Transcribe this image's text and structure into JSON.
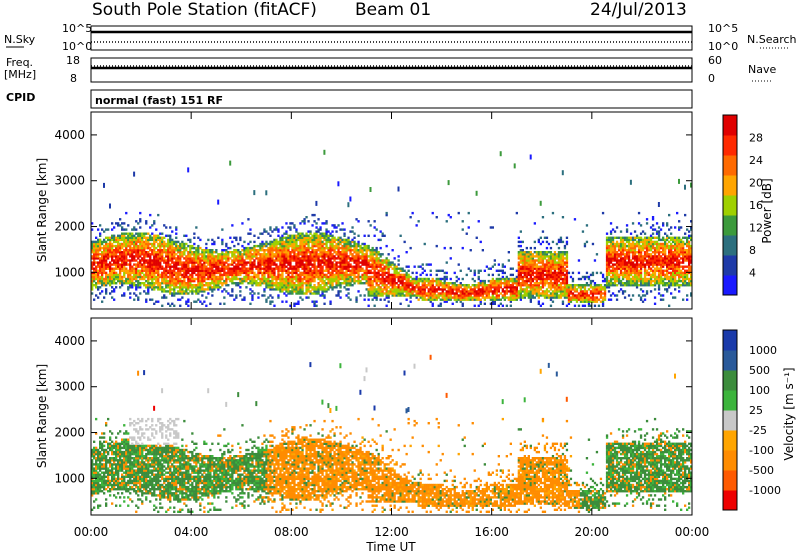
{
  "header": {
    "title": "South Pole Station (fitACF)",
    "beam": "Beam 01",
    "date": "24/Jul/2013"
  },
  "top_panels": {
    "nsky_label": "N.Sky",
    "nsearch_label": "N.Search",
    "noise_tick_top": "10^5",
    "noise_tick_bottom": "10^0",
    "freq_label": "Freq.",
    "freq_unit": "[MHz]",
    "freq_ticks": [
      "18",
      "8"
    ],
    "nave_label": "Nave",
    "nave_ticks": [
      "60",
      "0"
    ],
    "cpid_label": "CPID",
    "cpid_text": "normal (fast) 151 RF"
  },
  "colors": {
    "power": [
      "#1a1aff",
      "#1e3aa8",
      "#2c6f7e",
      "#3c9a3c",
      "#9fd000",
      "#ffa500",
      "#ff6a00",
      "#ff2a00",
      "#e00000"
    ],
    "velocity": [
      "#ee0000",
      "#ff5a00",
      "#ff8c00",
      "#ffa500",
      "#c8c8c8",
      "#3cb43c",
      "#3c8c3c",
      "#2a5a9a",
      "#1a3aaa"
    ]
  },
  "chart_data": [
    {
      "type": "heatmap",
      "name": "power",
      "ylabel": "Slant Range [km]",
      "ylim": [
        200,
        4500
      ],
      "yticks": [
        1000,
        2000,
        3000,
        4000
      ],
      "xlim": [
        0,
        24
      ],
      "colorbar_label": "Power [dB]",
      "colorbar_ticks": [
        "28",
        "24",
        "20",
        "16",
        "12",
        "8",
        "4"
      ],
      "colorbar_range": [
        0,
        30
      ]
    },
    {
      "type": "heatmap",
      "name": "velocity",
      "ylabel": "Slant Range [km]",
      "ylim": [
        200,
        4500
      ],
      "yticks": [
        1000,
        2000,
        3000,
        4000
      ],
      "xlim": [
        0,
        24
      ],
      "xlabel": "Time UT",
      "xticks": [
        "00:00",
        "04:00",
        "08:00",
        "12:00",
        "16:00",
        "20:00",
        "00:00"
      ],
      "colorbar_label": "Velocity [m s⁻¹]",
      "colorbar_ticks": [
        "1000",
        "500",
        "100",
        "25",
        "-25",
        "-100",
        "-500",
        "-1000"
      ]
    }
  ]
}
